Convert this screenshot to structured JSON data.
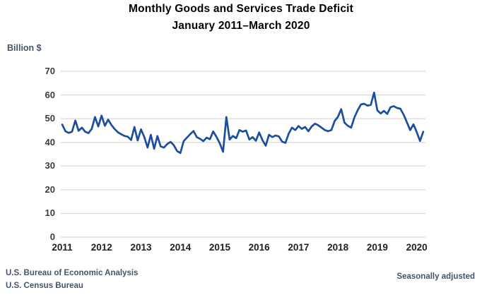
{
  "title": {
    "line1": "Monthly Goods and Services Trade Deficit",
    "line2": "January 2011–March 2020"
  },
  "y_axis_unit": "Billion $",
  "footer": {
    "source_line1": "U.S. Bureau of Economic Analysis",
    "source_line2": "U.S. Census Bureau",
    "note": "Seasonally adjusted"
  },
  "colors": {
    "line": "#1B4E9C",
    "gridline": "#D9D9D9",
    "title_text": "#000000",
    "axis_text": "#3B3B3B",
    "year_text": "#1F1F1F",
    "annotation_text": "#44546A",
    "background": "#FFFFFF"
  },
  "chart_data": {
    "type": "line",
    "title": "Monthly Goods and Services Trade Deficit",
    "subtitle": "January 2011–March 2020",
    "xlabel": "",
    "ylabel": "Billion $",
    "ylim": [
      0,
      70
    ],
    "y_ticks": [
      0,
      10,
      20,
      30,
      40,
      50,
      60,
      70
    ],
    "x_tick_labels": [
      "2011",
      "2012",
      "2013",
      "2014",
      "2015",
      "2016",
      "2017",
      "2018",
      "2019",
      "2020"
    ],
    "x_start": "2011-01",
    "x_end": "2020-03",
    "frequency": "monthly",
    "grid": "horizontal",
    "legend_position": "none",
    "note": "Seasonally adjusted",
    "series": [
      {
        "name": "Goods and services trade deficit",
        "color": "#1B4E9C",
        "values": [
          47.5,
          44.7,
          44.0,
          44.5,
          49.2,
          44.9,
          46.2,
          44.5,
          43.9,
          45.7,
          50.7,
          46.7,
          51.3,
          47.0,
          49.6,
          47.3,
          45.6,
          44.2,
          43.4,
          42.7,
          42.4,
          41.0,
          46.5,
          40.8,
          45.5,
          42.3,
          37.8,
          43.2,
          37.3,
          42.7,
          38.3,
          37.8,
          39.3,
          40.2,
          38.8,
          36.3,
          35.5,
          40.5,
          42.0,
          43.5,
          44.8,
          42.2,
          41.5,
          40.5,
          42.0,
          41.3,
          44.6,
          42.3,
          39.6,
          36.0,
          50.7,
          41.2,
          42.7,
          41.8,
          45.2,
          44.5,
          45.0,
          41.2,
          42.2,
          40.7,
          44.2,
          41.0,
          38.6,
          43.2,
          42.2,
          42.9,
          42.5,
          40.3,
          39.8,
          43.7,
          46.2,
          45.2,
          46.9,
          45.7,
          46.5,
          44.7,
          46.7,
          47.9,
          47.2,
          46.2,
          45.2,
          44.7,
          45.2,
          49.0,
          50.8,
          54.0,
          48.3,
          47.0,
          46.2,
          50.5,
          53.5,
          56.0,
          56.3,
          55.5,
          55.8,
          61.0,
          53.5,
          52.2,
          53.3,
          52.0,
          54.8,
          55.3,
          54.5,
          54.2,
          51.7,
          48.5,
          45.2,
          47.6,
          44.3,
          40.6,
          44.5
        ]
      }
    ]
  }
}
